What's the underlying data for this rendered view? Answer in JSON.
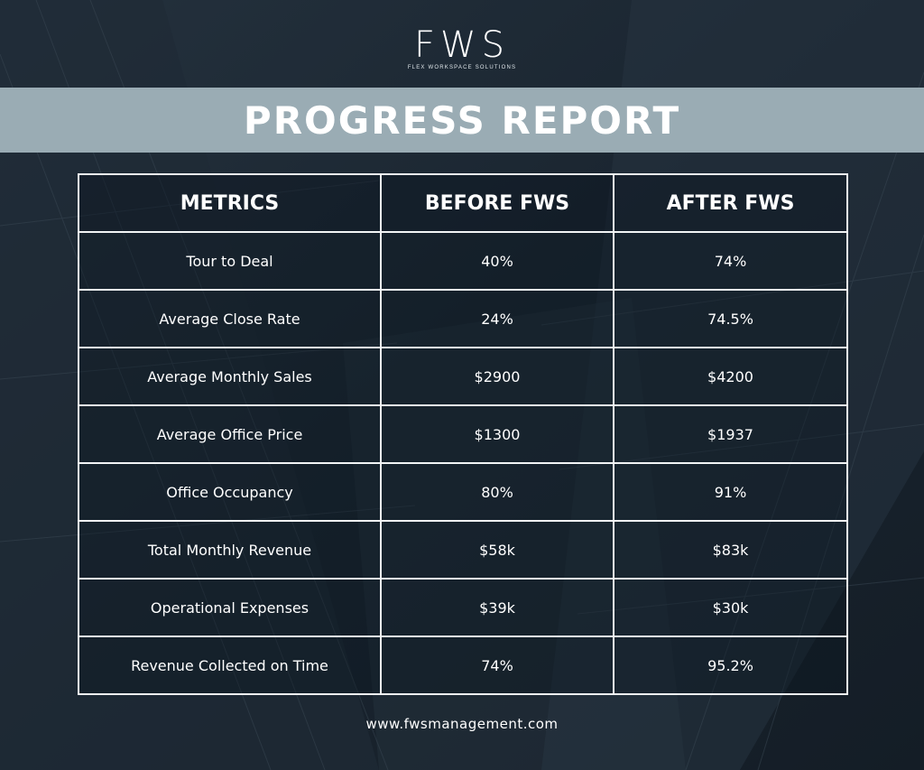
{
  "logo": {
    "mark": "FWS",
    "tagline": "FLEX WORKSPACE SOLUTIONS"
  },
  "banner": {
    "title": "PROGRESS REPORT"
  },
  "table": {
    "headers": [
      "METRICS",
      "BEFORE FWS",
      "AFTER FWS"
    ],
    "rows": [
      [
        "Tour to Deal",
        "40%",
        "74%"
      ],
      [
        "Average Close Rate",
        "24%",
        "74.5%"
      ],
      [
        "Average Monthly Sales",
        "$2900",
        "$4200"
      ],
      [
        "Average Office Price",
        "$1300",
        "$1937"
      ],
      [
        "Office Occupancy",
        "80%",
        "91%"
      ],
      [
        "Total Monthly Revenue",
        "$58k",
        "$83k"
      ],
      [
        "Operational Expenses",
        "$39k",
        "$30k"
      ],
      [
        "Revenue Collected on Time",
        "74%",
        "95.2%"
      ]
    ]
  },
  "footer": {
    "url": "www.fwsmanagement.com"
  },
  "colors": {
    "background": "#1b2733",
    "banner": "#9aacb4",
    "text": "#ffffff"
  }
}
